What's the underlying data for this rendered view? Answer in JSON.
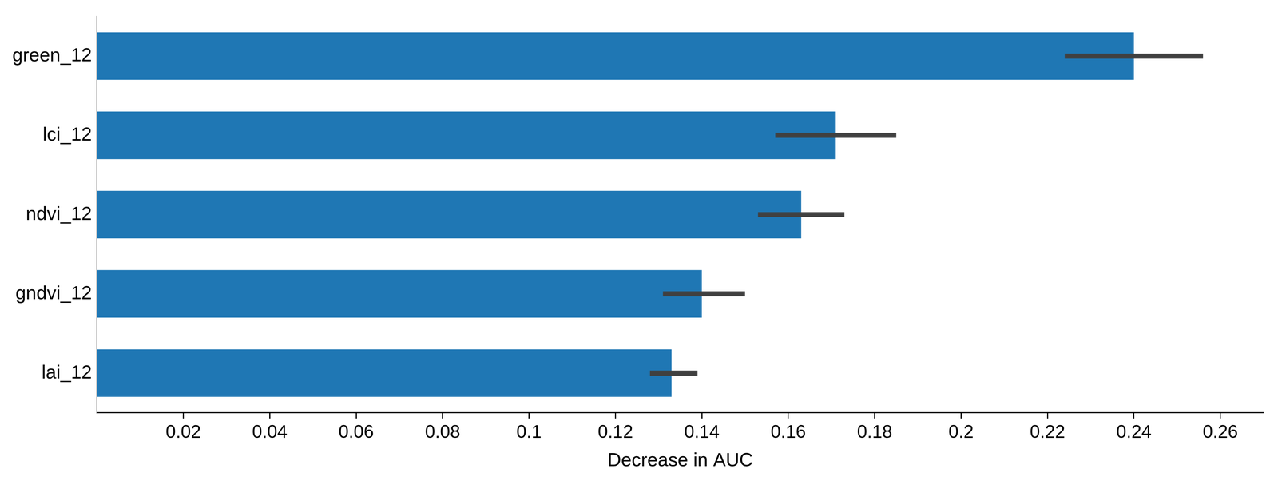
{
  "chart_data": {
    "type": "bar",
    "orientation": "horizontal",
    "x_label": "Decrease in AUC",
    "categories": [
      "green_12",
      "lci_12",
      "ndvi_12",
      "gndvi_12",
      "lai_12"
    ],
    "values": [
      0.24,
      0.171,
      0.163,
      0.14,
      0.133
    ],
    "error_low": [
      0.224,
      0.157,
      0.153,
      0.131,
      0.128
    ],
    "error_high": [
      0.256,
      0.185,
      0.173,
      0.15,
      0.139
    ],
    "color": "#1f77b4",
    "xlim": [
      0,
      0.27
    ],
    "xticks": [
      0.02,
      0.04,
      0.06,
      0.08,
      0.1,
      0.12,
      0.14,
      0.16,
      0.18,
      0.2,
      0.22,
      0.24,
      0.26
    ],
    "grid": false
  }
}
